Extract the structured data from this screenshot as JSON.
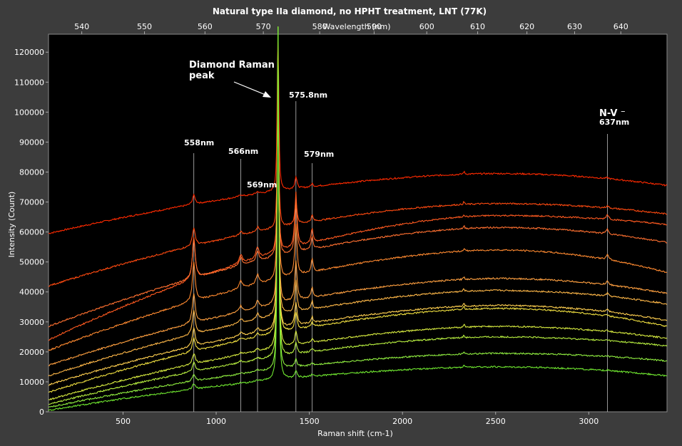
{
  "chart_data": {
    "type": "line",
    "title": "Natural type IIa diamond, no HPHT treatment, LNT (77K)",
    "xlabel": "Raman shift (cm-1)",
    "ylabel": "Intensity (Count)",
    "x2label": "Wavelength (nm)",
    "xlim": [
      100,
      3420
    ],
    "ylim": [
      0,
      126000
    ],
    "x_ticks": [
      500,
      1000,
      1500,
      2000,
      2500,
      3000
    ],
    "y_ticks": [
      0,
      10000,
      20000,
      30000,
      40000,
      50000,
      60000,
      70000,
      80000,
      90000,
      100000,
      110000,
      120000
    ],
    "x2_ticks": [
      540,
      550,
      560,
      570,
      580,
      590,
      600,
      610,
      620,
      630,
      640
    ],
    "grid": false,
    "background": "#000000",
    "peaks": [
      {
        "label": "558nm",
        "x": 880,
        "height_frac": 1.0
      },
      {
        "label": "566nm",
        "x": 1132,
        "height_frac": 0.2
      },
      {
        "label": "569nm",
        "x": 1222,
        "height_frac": 0.25
      },
      {
        "label": "Diamond Raman",
        "x": 1332,
        "height_frac": 8.0
      },
      {
        "label": "575.8nm",
        "x": 1428,
        "height_frac": 1.3
      },
      {
        "label": "579nm",
        "x": 1515,
        "height_frac": 0.35
      },
      {
        "label": "N-V⁻",
        "x": 3100,
        "height_frac": 0.12
      }
    ],
    "series": [
      {
        "color": "#ff2a00",
        "start": 59500,
        "plateau": 79500,
        "end": 75500,
        "p558": 3000,
        "p1332": 68000
      },
      {
        "color": "#ff4a10",
        "start": 42000,
        "plateau": 69500,
        "end": 66000,
        "p558": 6000,
        "p1332": 60000
      },
      {
        "color": "#ff5a20",
        "start": 24000,
        "plateau": 65500,
        "end": 62500,
        "p558": 14000,
        "p1332": 65000
      },
      {
        "color": "#ff7030",
        "start": 28500,
        "plateau": 61500,
        "end": 56500,
        "p558": 13000,
        "p1332": 70000
      },
      {
        "color": "#ff8a30",
        "start": 20500,
        "plateau": 54000,
        "end": 46500,
        "p558": 13000,
        "p1332": 80000
      },
      {
        "color": "#ffa040",
        "start": 15500,
        "plateau": 44500,
        "end": 39500,
        "p558": 10000,
        "p1332": 90000
      },
      {
        "color": "#ffb848",
        "start": 12000,
        "plateau": 40500,
        "end": 36000,
        "p558": 8000,
        "p1332": 95000
      },
      {
        "color": "#ffd050",
        "start": 9000,
        "plateau": 35500,
        "end": 30500,
        "p558": 6000,
        "p1332": 100000
      },
      {
        "color": "#f0e040",
        "start": 6500,
        "plateau": 34500,
        "end": 28500,
        "p558": 4500,
        "p1332": 105000
      },
      {
        "color": "#d8ec40",
        "start": 4000,
        "plateau": 28500,
        "end": 24500,
        "p558": 3500,
        "p1332": 110000
      },
      {
        "color": "#b8f040",
        "start": 2500,
        "plateau": 25000,
        "end": 22000,
        "p558": 3000,
        "p1332": 112000
      },
      {
        "color": "#90ee40",
        "start": 1500,
        "plateau": 19500,
        "end": 17000,
        "p558": 2200,
        "p1332": 118000
      },
      {
        "color": "#70e830",
        "start": 500,
        "plateau": 15000,
        "end": 12000,
        "p558": 1800,
        "p1332": 120000
      }
    ]
  },
  "annotations": {
    "diamond_line1": "Diamond Raman",
    "diamond_line2": "peak",
    "a558": "558nm",
    "a566": "566nm",
    "a569": "569nm",
    "a5758": "575.8nm",
    "a579": "579nm",
    "nv_line1": "N-V ⁻",
    "nv_line2": "637nm"
  }
}
